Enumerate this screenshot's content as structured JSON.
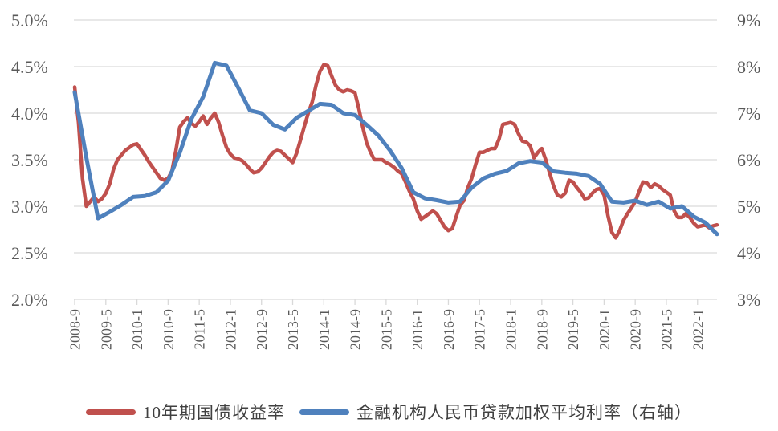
{
  "chart_data": {
    "type": "line",
    "title": "",
    "grid": true,
    "legend_position": "bottom",
    "left_axis": {
      "min": 2.0,
      "max": 5.0,
      "ticks": [
        "5.0%",
        "4.5%",
        "4.0%",
        "3.5%",
        "3.0%",
        "2.5%",
        "2.0%"
      ]
    },
    "right_axis": {
      "min": 3.0,
      "max": 9.0,
      "ticks": [
        "9%",
        "8%",
        "7%",
        "6%",
        "5%",
        "4%",
        "3%"
      ]
    },
    "x_axis": {
      "start": "2008-9",
      "end": "2022-6",
      "total_months": 165,
      "label_every_months": 8,
      "labels": [
        "2008-9",
        "2009-5",
        "2010-1",
        "2010-9",
        "2011-5",
        "2012-1",
        "2012-9",
        "2013-5",
        "2014-1",
        "2014-9",
        "2015-5",
        "2016-1",
        "2016-9",
        "2017-5",
        "2018-1",
        "2018-9",
        "2019-5",
        "2020-1",
        "2020-9",
        "2021-5",
        "2022-1"
      ]
    },
    "series": [
      {
        "name": "10年期国债收益率",
        "color": "#c0504d",
        "axis": "left",
        "stroke_width": 4.5,
        "start": "2008-09",
        "freq_months": 1,
        "values": [
          4.28,
          3.9,
          3.3,
          3.0,
          3.05,
          3.1,
          3.05,
          3.08,
          3.14,
          3.24,
          3.4,
          3.5,
          3.55,
          3.6,
          3.63,
          3.66,
          3.67,
          3.61,
          3.55,
          3.48,
          3.42,
          3.36,
          3.3,
          3.28,
          3.3,
          3.38,
          3.6,
          3.85,
          3.91,
          3.95,
          3.89,
          3.86,
          3.91,
          3.97,
          3.88,
          3.95,
          4.0,
          3.9,
          3.76,
          3.63,
          3.56,
          3.52,
          3.51,
          3.49,
          3.45,
          3.4,
          3.36,
          3.37,
          3.41,
          3.47,
          3.53,
          3.58,
          3.6,
          3.59,
          3.55,
          3.51,
          3.47,
          3.57,
          3.71,
          3.86,
          4.0,
          4.12,
          4.3,
          4.45,
          4.52,
          4.51,
          4.4,
          4.3,
          4.25,
          4.23,
          4.25,
          4.24,
          4.22,
          4.05,
          3.85,
          3.68,
          3.58,
          3.5,
          3.5,
          3.5,
          3.47,
          3.45,
          3.42,
          3.38,
          3.35,
          3.26,
          3.16,
          3.08,
          2.95,
          2.86,
          2.89,
          2.92,
          2.95,
          2.92,
          2.85,
          2.78,
          2.74,
          2.76,
          2.89,
          3.01,
          3.06,
          3.2,
          3.3,
          3.45,
          3.58,
          3.58,
          3.6,
          3.62,
          3.62,
          3.72,
          3.88,
          3.89,
          3.9,
          3.88,
          3.78,
          3.7,
          3.69,
          3.65,
          3.52,
          3.58,
          3.62,
          3.5,
          3.36,
          3.22,
          3.12,
          3.1,
          3.14,
          3.28,
          3.26,
          3.2,
          3.15,
          3.08,
          3.09,
          3.14,
          3.18,
          3.19,
          3.12,
          2.9,
          2.72,
          2.66,
          2.74,
          2.85,
          2.92,
          2.98,
          3.05,
          3.16,
          3.26,
          3.25,
          3.2,
          3.24,
          3.22,
          3.18,
          3.15,
          3.12,
          2.95,
          2.88,
          2.88,
          2.92,
          2.88,
          2.82,
          2.78,
          2.79,
          2.8,
          2.77,
          2.79,
          2.8
        ]
      },
      {
        "name": "金融机构人民币贷款加权平均利率（右轴）",
        "color": "#4f81bd",
        "axis": "right",
        "stroke_width": 5,
        "start": "2008-09",
        "freq_months": 3,
        "values": [
          7.45,
          6.05,
          4.74,
          4.88,
          5.03,
          5.2,
          5.22,
          5.3,
          5.55,
          6.15,
          6.88,
          7.35,
          8.08,
          8.02,
          7.55,
          7.06,
          7.0,
          6.75,
          6.65,
          6.9,
          7.05,
          7.2,
          7.18,
          7.0,
          6.96,
          6.75,
          6.52,
          6.2,
          5.82,
          5.3,
          5.17,
          5.13,
          5.08,
          5.1,
          5.4,
          5.6,
          5.7,
          5.76,
          5.92,
          5.97,
          5.94,
          5.75,
          5.72,
          5.7,
          5.65,
          5.48,
          5.1,
          5.08,
          5.12,
          5.03,
          5.1,
          4.95,
          5.0,
          4.78,
          4.65,
          4.4
        ]
      }
    ]
  },
  "legend": {
    "items": [
      {
        "label": "10年期国债收益率",
        "color": "#c0504d"
      },
      {
        "label": "金融机构人民币贷款加权平均利率（右轴）",
        "color": "#4f81bd"
      }
    ]
  },
  "colors": {
    "grid": "#d9d9d9",
    "axis_text": "#595959",
    "background": "#ffffff"
  }
}
